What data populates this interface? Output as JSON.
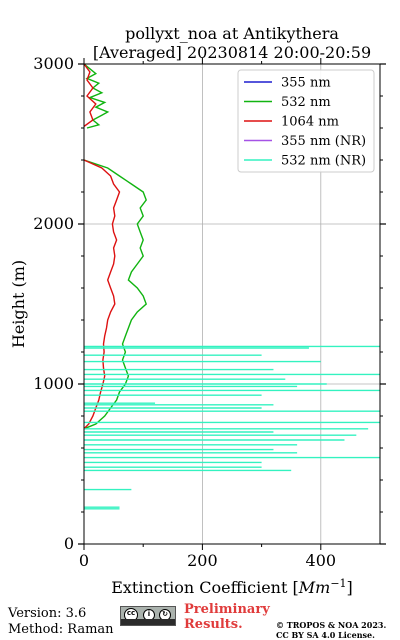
{
  "chart_data": {
    "type": "line",
    "title": "pollyxt_noa at Antikythera",
    "subtitle": "[Averaged] 20230814 20:00-20:59",
    "xlabel": "Extinction Coefficient [",
    "xlabel_unit": "Mm",
    "xlabel_exp": "−1",
    "xlabel_close": "]",
    "ylabel": "Height (m)",
    "xlim": [
      0,
      500
    ],
    "ylim": [
      0,
      3000
    ],
    "xticks": [
      0,
      200,
      400
    ],
    "yticks": [
      0,
      1000,
      2000,
      3000
    ],
    "grid": true,
    "legend_position": "top-right",
    "series": [
      {
        "name": "355 nm",
        "color": "#1f1fcf",
        "points": []
      },
      {
        "name": "532 nm",
        "color": "#11b411",
        "points": [
          [
            5,
            2600
          ],
          [
            25,
            2620
          ],
          [
            15,
            2650
          ],
          [
            30,
            2680
          ],
          [
            40,
            2700
          ],
          [
            20,
            2730
          ],
          [
            35,
            2760
          ],
          [
            10,
            2790
          ],
          [
            30,
            2820
          ],
          [
            15,
            2850
          ],
          [
            25,
            2880
          ],
          [
            5,
            2910
          ],
          [
            20,
            2940
          ],
          [
            10,
            2970
          ],
          [
            0,
            3000
          ],
          [
            0,
            2400
          ],
          [
            40,
            2350
          ],
          [
            60,
            2300
          ],
          [
            80,
            2250
          ],
          [
            100,
            2200
          ],
          [
            105,
            2150
          ],
          [
            95,
            2100
          ],
          [
            100,
            2050
          ],
          [
            90,
            2000
          ],
          [
            95,
            1950
          ],
          [
            100,
            1900
          ],
          [
            95,
            1850
          ],
          [
            100,
            1800
          ],
          [
            90,
            1750
          ],
          [
            80,
            1700
          ],
          [
            75,
            1650
          ],
          [
            90,
            1600
          ],
          [
            100,
            1550
          ],
          [
            105,
            1500
          ],
          [
            90,
            1450
          ],
          [
            80,
            1400
          ],
          [
            75,
            1350
          ],
          [
            70,
            1300
          ],
          [
            65,
            1250
          ],
          [
            70,
            1200
          ],
          [
            65,
            1150
          ],
          [
            70,
            1100
          ],
          [
            75,
            1050
          ],
          [
            70,
            1000
          ],
          [
            60,
            950
          ],
          [
            55,
            900
          ],
          [
            45,
            850
          ],
          [
            35,
            800
          ],
          [
            20,
            750
          ],
          [
            0,
            720
          ]
        ]
      },
      {
        "name": "1064 nm",
        "color": "#dd1111",
        "points": [
          [
            0,
            2610
          ],
          [
            15,
            2650
          ],
          [
            10,
            2700
          ],
          [
            20,
            2750
          ],
          [
            5,
            2800
          ],
          [
            15,
            2850
          ],
          [
            5,
            2900
          ],
          [
            10,
            2950
          ],
          [
            0,
            3000
          ],
          [
            0,
            2400
          ],
          [
            30,
            2350
          ],
          [
            45,
            2300
          ],
          [
            50,
            2250
          ],
          [
            60,
            2200
          ],
          [
            55,
            2150
          ],
          [
            50,
            2100
          ],
          [
            52,
            2050
          ],
          [
            48,
            2000
          ],
          [
            50,
            1950
          ],
          [
            55,
            1900
          ],
          [
            50,
            1850
          ],
          [
            52,
            1800
          ],
          [
            50,
            1750
          ],
          [
            45,
            1700
          ],
          [
            40,
            1650
          ],
          [
            45,
            1600
          ],
          [
            50,
            1550
          ],
          [
            52,
            1500
          ],
          [
            45,
            1450
          ],
          [
            40,
            1400
          ],
          [
            38,
            1350
          ],
          [
            35,
            1300
          ],
          [
            33,
            1250
          ],
          [
            34,
            1200
          ],
          [
            32,
            1150
          ],
          [
            33,
            1100
          ],
          [
            35,
            1050
          ],
          [
            32,
            1000
          ],
          [
            28,
            950
          ],
          [
            25,
            900
          ],
          [
            20,
            850
          ],
          [
            15,
            800
          ],
          [
            8,
            750
          ],
          [
            0,
            720
          ]
        ]
      },
      {
        "name": "355 nm (NR)",
        "color": "#a552e6",
        "points": []
      },
      {
        "name": "532 nm (NR)",
        "color": "#33f2c0",
        "spikes": [
          [
            1235,
            500
          ],
          [
            1225,
            380
          ],
          [
            1180,
            300
          ],
          [
            1140,
            400
          ],
          [
            1090,
            320
          ],
          [
            1060,
            500
          ],
          [
            1030,
            340
          ],
          [
            1000,
            410
          ],
          [
            985,
            360
          ],
          [
            960,
            500
          ],
          [
            930,
            300
          ],
          [
            880,
            120
          ],
          [
            870,
            320
          ],
          [
            850,
            300
          ],
          [
            830,
            500
          ],
          [
            760,
            500
          ],
          [
            720,
            480
          ],
          [
            700,
            320
          ],
          [
            680,
            460
          ],
          [
            650,
            440
          ],
          [
            620,
            360
          ],
          [
            590,
            320
          ],
          [
            570,
            360
          ],
          [
            540,
            500
          ],
          [
            510,
            300
          ],
          [
            480,
            300
          ],
          [
            460,
            350
          ],
          [
            340,
            80
          ],
          [
            230,
            60
          ],
          [
            220,
            60
          ]
        ]
      }
    ]
  },
  "footer": {
    "version": "Version: 3.6",
    "method": "Method: Raman",
    "preliminary_line1": "Preliminary",
    "preliminary_line2": "Results.",
    "copyright_line1": "© TROPOS & NOA 2023.",
    "copyright_line2": "CC BY SA 4.0 License."
  }
}
